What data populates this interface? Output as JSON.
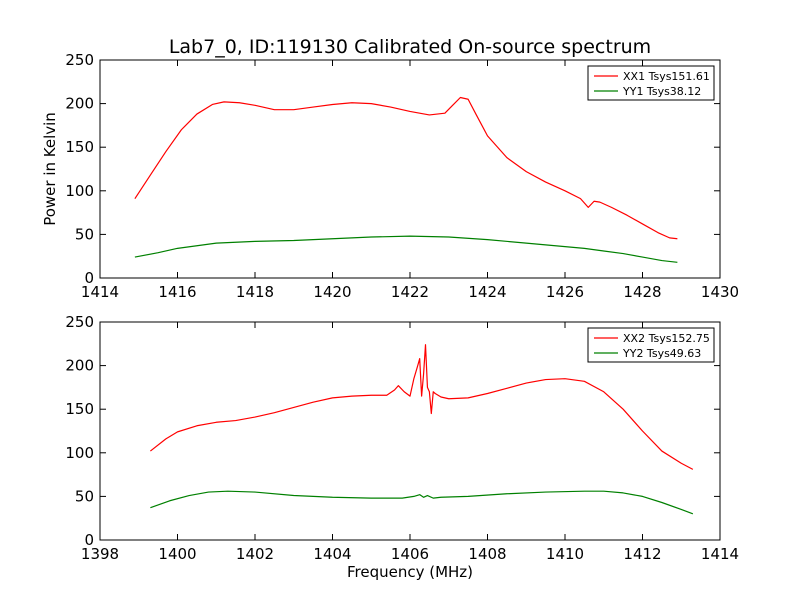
{
  "title": "Lab7_0, ID:119130 Calibrated On-source spectrum",
  "chart_data": [
    {
      "type": "line",
      "xlabel": "",
      "ylabel": "Power in Kelvin",
      "xlim": [
        1414,
        1430
      ],
      "ylim": [
        0,
        250
      ],
      "xticks": [
        "1414",
        "1416",
        "1418",
        "1420",
        "1422",
        "1424",
        "1426",
        "1428",
        "1430"
      ],
      "yticks": [
        "0",
        "50",
        "100",
        "150",
        "200",
        "250"
      ],
      "legend_position": "top-right",
      "series": [
        {
          "name": "XX1 Tsys151.61",
          "color": "#ff0000",
          "x": [
            1414.9,
            1415.3,
            1415.7,
            1416.1,
            1416.5,
            1416.9,
            1417.2,
            1417.6,
            1418.0,
            1418.5,
            1419.0,
            1419.5,
            1420.0,
            1420.5,
            1421.0,
            1421.5,
            1422.0,
            1422.5,
            1422.9,
            1423.1,
            1423.3,
            1423.5,
            1423.7,
            1424.0,
            1424.5,
            1425.0,
            1425.5,
            1426.0,
            1426.4,
            1426.6,
            1426.75,
            1426.9,
            1427.2,
            1427.6,
            1428.0,
            1428.4,
            1428.7,
            1428.9
          ],
          "values": [
            91,
            118,
            145,
            170,
            188,
            199,
            202,
            201,
            198,
            193,
            193,
            196,
            199,
            201,
            200,
            196,
            191,
            187,
            189,
            198,
            207,
            205,
            188,
            163,
            138,
            122,
            110,
            100,
            91,
            81,
            88,
            87,
            81,
            72,
            62,
            52,
            46,
            45
          ]
        },
        {
          "name": "YY1 Tsys38.12",
          "color": "#008000",
          "x": [
            1414.9,
            1415.5,
            1416.0,
            1416.5,
            1417.0,
            1417.5,
            1418.0,
            1419.0,
            1420.0,
            1421.0,
            1422.0,
            1423.0,
            1424.0,
            1425.0,
            1426.0,
            1426.5,
            1427.0,
            1427.5,
            1428.0,
            1428.5,
            1428.9
          ],
          "values": [
            24,
            29,
            34,
            37,
            40,
            41,
            42,
            43,
            45,
            47,
            48,
            47,
            44,
            40,
            36,
            34,
            31,
            28,
            24,
            20,
            18
          ]
        }
      ]
    },
    {
      "type": "line",
      "xlabel": "Frequency (MHz)",
      "ylabel": "",
      "xlim": [
        1398,
        1414
      ],
      "ylim": [
        0,
        250
      ],
      "xticks": [
        "1398",
        "1400",
        "1402",
        "1404",
        "1406",
        "1408",
        "1410",
        "1412",
        "1414"
      ],
      "yticks": [
        "0",
        "50",
        "100",
        "150",
        "200",
        "250"
      ],
      "legend_position": "top-right",
      "series": [
        {
          "name": "XX2 Tsys152.75",
          "color": "#ff0000",
          "x": [
            1399.3,
            1399.7,
            1400.0,
            1400.5,
            1401.0,
            1401.5,
            1402.0,
            1402.5,
            1403.0,
            1403.5,
            1404.0,
            1404.5,
            1405.0,
            1405.4,
            1405.6,
            1405.7,
            1405.85,
            1406.0,
            1406.1,
            1406.2,
            1406.25,
            1406.3,
            1406.35,
            1406.4,
            1406.45,
            1406.5,
            1406.55,
            1406.6,
            1406.65,
            1406.8,
            1407.0,
            1407.5,
            1408.0,
            1408.5,
            1409.0,
            1409.5,
            1410.0,
            1410.5,
            1411.0,
            1411.5,
            1412.0,
            1412.5,
            1413.0,
            1413.3
          ],
          "values": [
            102,
            116,
            124,
            131,
            135,
            137,
            141,
            146,
            152,
            158,
            163,
            165,
            166,
            166,
            172,
            177,
            170,
            165,
            185,
            200,
            208,
            165,
            190,
            224,
            175,
            170,
            145,
            170,
            168,
            164,
            162,
            163,
            168,
            174,
            180,
            184,
            185,
            182,
            170,
            150,
            125,
            102,
            88,
            81
          ]
        },
        {
          "name": "YY2 Tsys49.63",
          "color": "#008000",
          "x": [
            1399.3,
            1399.8,
            1400.3,
            1400.8,
            1401.3,
            1402.0,
            1403.0,
            1404.0,
            1405.0,
            1405.8,
            1406.1,
            1406.25,
            1406.35,
            1406.45,
            1406.6,
            1406.8,
            1407.5,
            1408.5,
            1409.5,
            1410.5,
            1411.0,
            1411.5,
            1412.0,
            1412.5,
            1413.0,
            1413.3
          ],
          "values": [
            37,
            45,
            51,
            55,
            56,
            55,
            51,
            49,
            48,
            48,
            50,
            52,
            49,
            51,
            48,
            49,
            50,
            53,
            55,
            56,
            56,
            54,
            50,
            43,
            35,
            30
          ]
        }
      ]
    }
  ]
}
